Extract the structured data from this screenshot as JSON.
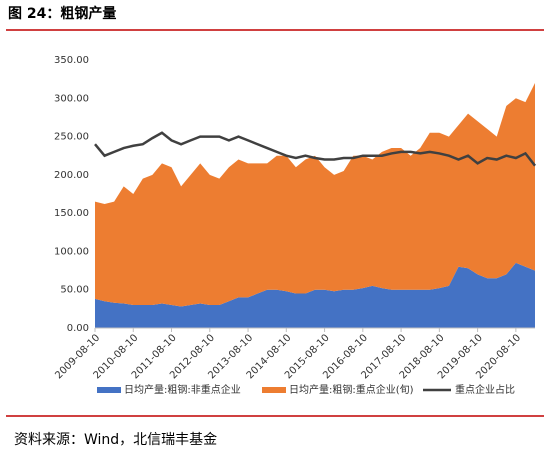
{
  "chart_data": {
    "type": "stacked-area-line",
    "title": "图 24：粗钢产量",
    "source": "资料来源：Wind，北信瑞丰基金",
    "categories": [
      "2009-08-10",
      null,
      null,
      null,
      "2010-08-10",
      null,
      null,
      null,
      "2011-08-10",
      null,
      null,
      null,
      "2012-08-10",
      null,
      null,
      null,
      "2013-08-10",
      null,
      null,
      null,
      "2014-08-10",
      null,
      null,
      null,
      "2015-08-10",
      null,
      null,
      null,
      "2016-08-10",
      null,
      null,
      null,
      "2017-08-10",
      null,
      null,
      null,
      "2018-08-10",
      null,
      null,
      null,
      "2019-08-10",
      null,
      null,
      null,
      "2020-08-10",
      null,
      null
    ],
    "series": [
      {
        "name": "日均产量:粗钢:非重点企业",
        "color": "#4472c4",
        "stack": "area",
        "values": [
          38,
          35,
          33,
          32,
          30,
          30,
          30,
          32,
          30,
          28,
          30,
          32,
          30,
          30,
          35,
          40,
          40,
          45,
          50,
          50,
          48,
          45,
          45,
          50,
          50,
          48,
          50,
          50,
          52,
          55,
          52,
          50,
          50,
          50,
          50,
          50,
          52,
          55,
          80,
          78,
          70,
          65,
          65,
          70,
          85,
          80,
          75
        ]
      },
      {
        "name": "日均产量:粗钢:重点企业(旬)",
        "color": "#ed7d31",
        "stack": "area",
        "values": [
          127,
          127,
          132,
          153,
          145,
          165,
          170,
          183,
          180,
          157,
          170,
          183,
          170,
          165,
          175,
          180,
          175,
          170,
          165,
          175,
          177,
          165,
          175,
          175,
          160,
          152,
          155,
          175,
          173,
          165,
          178,
          185,
          185,
          175,
          185,
          205,
          203,
          195,
          185,
          202,
          200,
          195,
          185,
          220,
          215,
          215,
          245
        ]
      },
      {
        "name": "重点企业占比",
        "color": "#404040",
        "stack": "line",
        "values": [
          240,
          225,
          230,
          235,
          238,
          240,
          248,
          255,
          245,
          240,
          245,
          250,
          250,
          250,
          245,
          250,
          245,
          240,
          235,
          230,
          225,
          222,
          225,
          222,
          220,
          220,
          222,
          222,
          225,
          225,
          225,
          228,
          230,
          230,
          228,
          230,
          228,
          225,
          220,
          225,
          215,
          222,
          220,
          225,
          222,
          228,
          212
        ]
      }
    ],
    "ylim": [
      0,
      350
    ],
    "yticks": [
      {
        "value": 0,
        "label": "0.00"
      },
      {
        "value": 50,
        "label": "50.00"
      },
      {
        "value": 100,
        "label": "100.00"
      },
      {
        "value": 150,
        "label": "150.00"
      },
      {
        "value": 200,
        "label": "200.00"
      },
      {
        "value": 250,
        "label": "250.00"
      },
      {
        "value": 300,
        "label": "300.00"
      },
      {
        "value": 350,
        "label": "350.00"
      }
    ],
    "legend": "bottom"
  }
}
